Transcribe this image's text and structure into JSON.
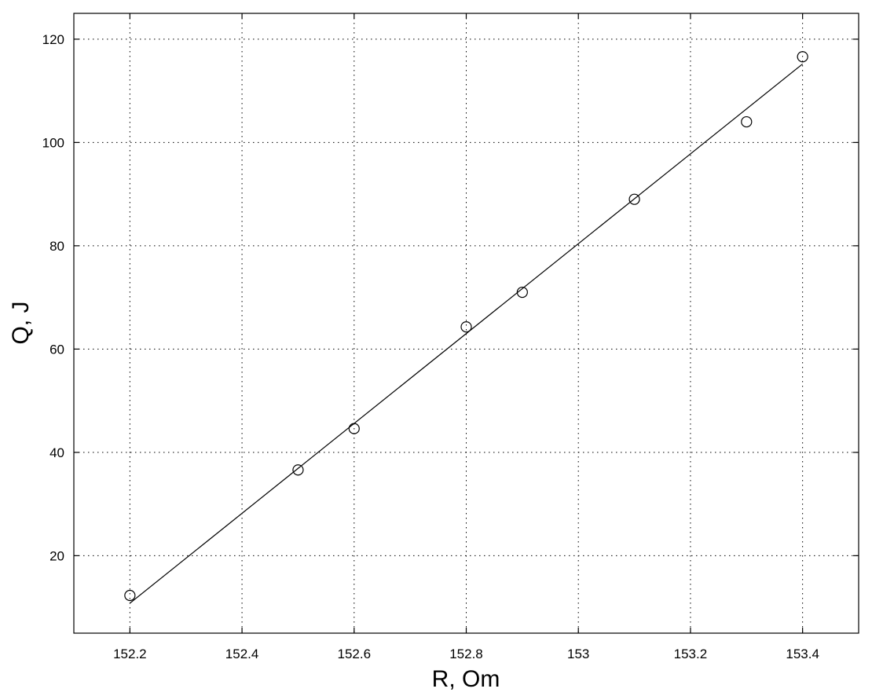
{
  "chart_data": {
    "type": "scatter",
    "title": "",
    "xlabel": "R, Om",
    "ylabel": "Q, J",
    "xlim": [
      152.1,
      153.5
    ],
    "ylim": [
      5,
      125
    ],
    "xticks": [
      152.2,
      152.4,
      152.6,
      152.8,
      153,
      153.2,
      153.4
    ],
    "xtick_labels": [
      "152.2",
      "152.4",
      "152.6",
      "152.8",
      "153",
      "153.2",
      "153.4"
    ],
    "yticks": [
      20,
      40,
      60,
      80,
      100,
      120
    ],
    "ytick_labels": [
      "20",
      "40",
      "60",
      "80",
      "100",
      "120"
    ],
    "grid": true,
    "series": [
      {
        "marker": "circle",
        "x": [
          152.2,
          152.5,
          152.6,
          152.8,
          152.9,
          153.1,
          153.3,
          153.4
        ],
        "y": [
          12.3,
          36.6,
          44.6,
          64.3,
          71.0,
          89.0,
          104.0,
          116.6
        ]
      },
      {
        "style": "line",
        "x": [
          152.2,
          153.4
        ],
        "y": [
          10.8,
          115.2
        ]
      }
    ]
  }
}
